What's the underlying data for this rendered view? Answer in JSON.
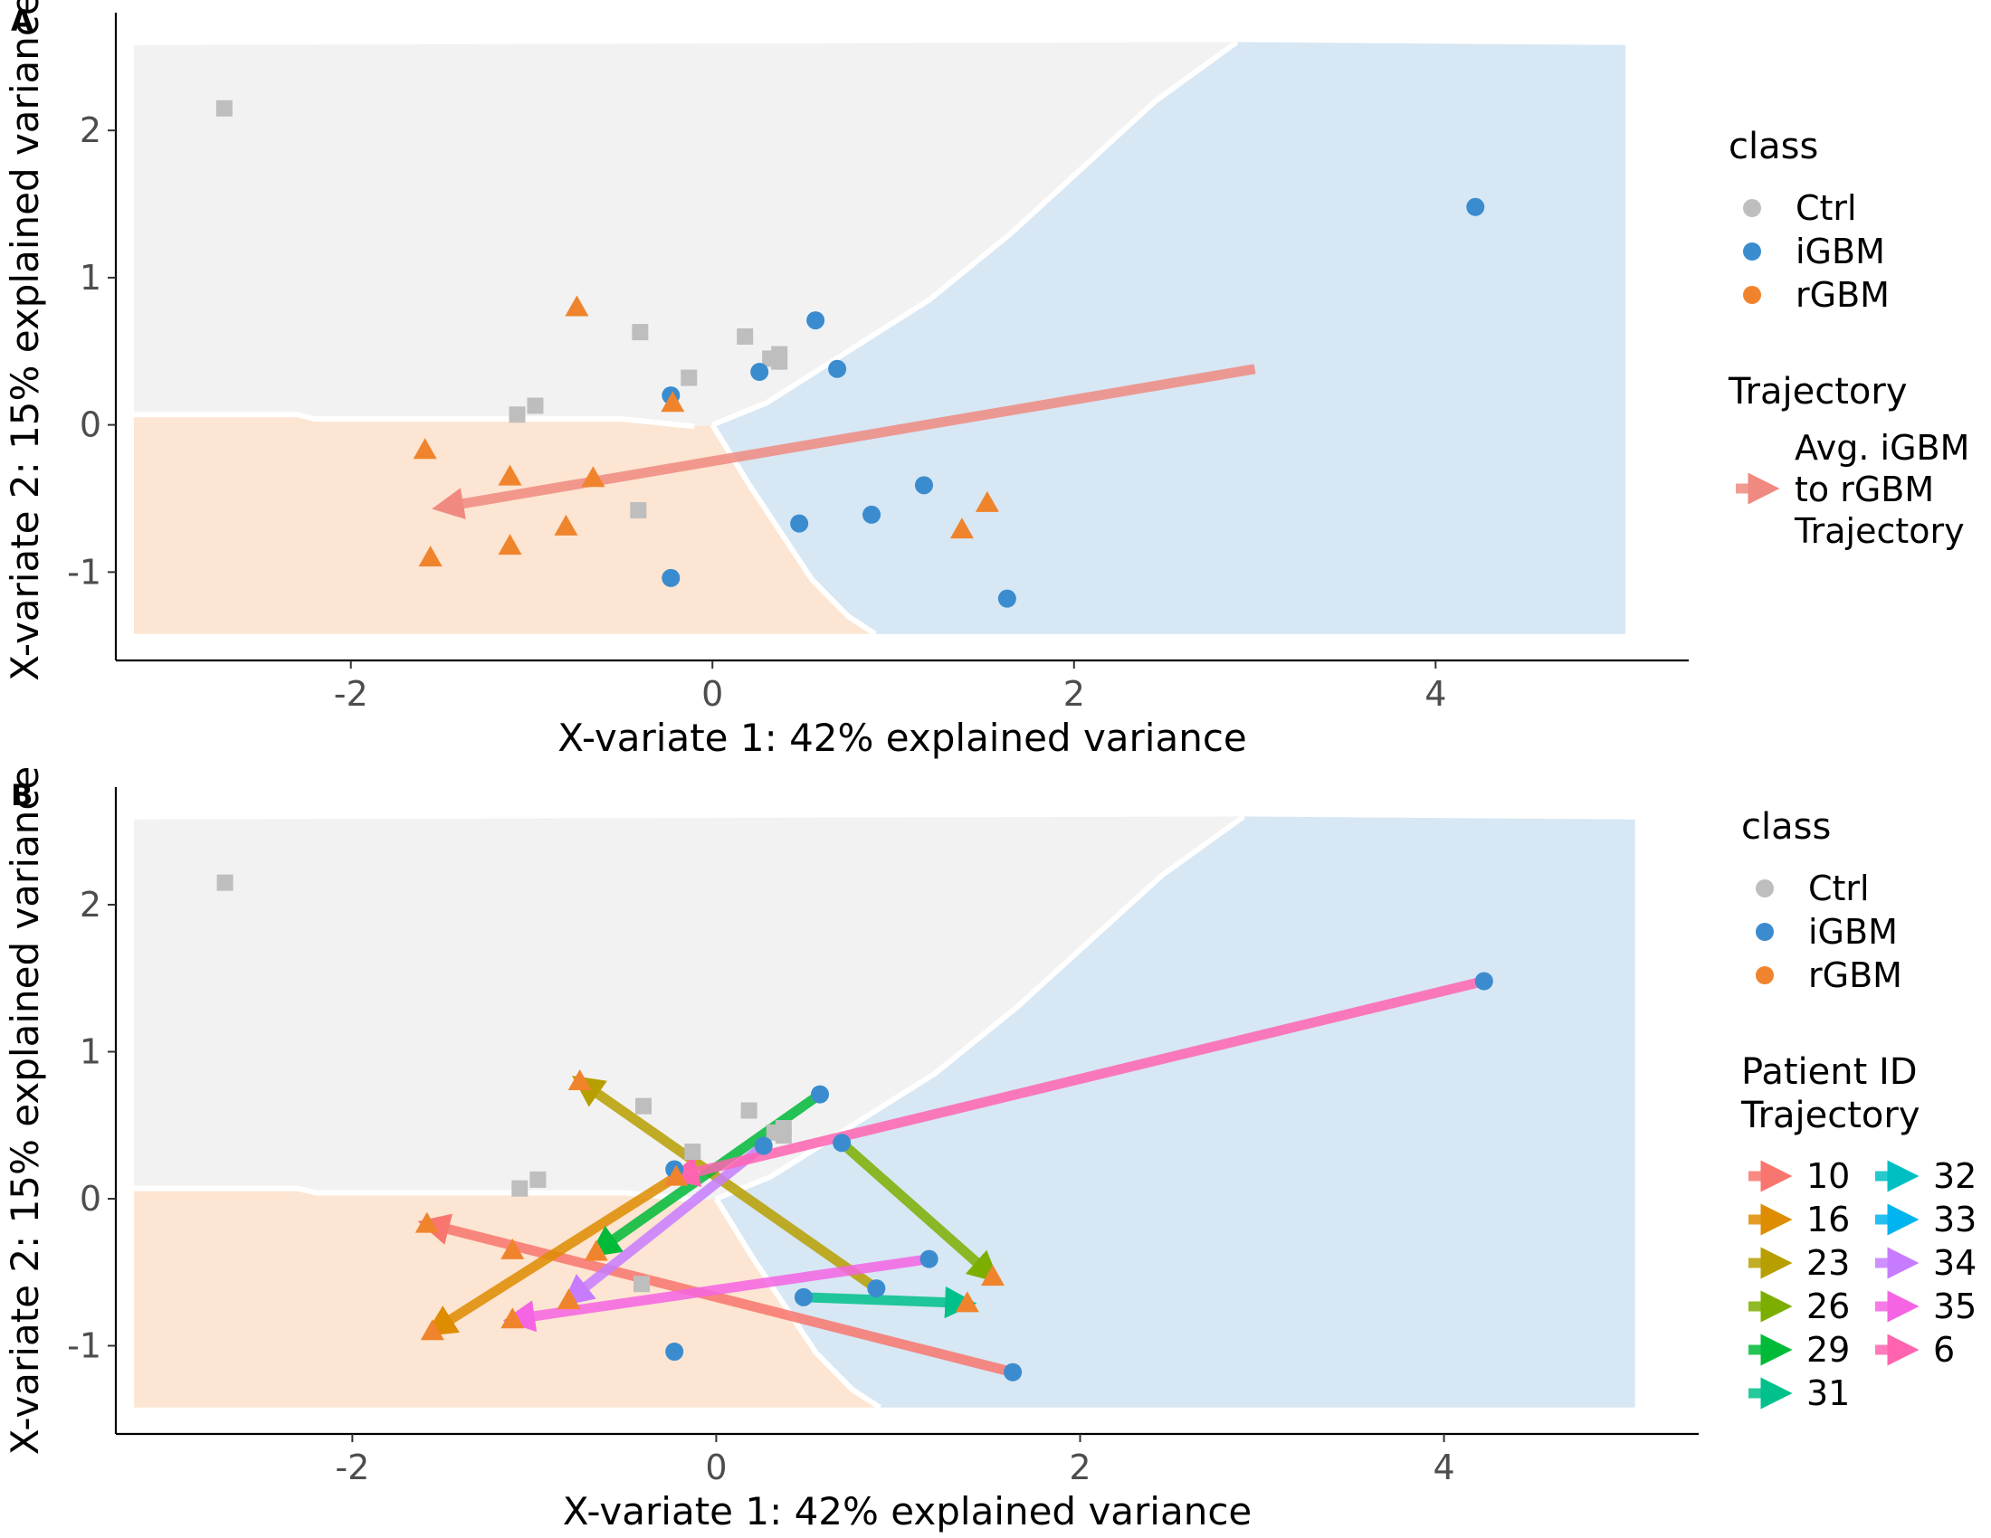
{
  "colors": {
    "Ctrl": "#bebebe",
    "iGBM": "#3a8ccf",
    "rGBM": "#f0842c",
    "region_Ctrl": "#f2f2f2",
    "region_iGBM": "#d7e7f4",
    "region_rGBM": "#fce5d2",
    "avg_trajectory": "#f08a80"
  },
  "chart_data": [
    {
      "type": "scatter",
      "panel_label": "A",
      "xlabel": "X-variate 1: 42% explained variance",
      "ylabel": "X-variate 2: 15% explained variance",
      "xlim": [
        -3.3,
        5.4
      ],
      "ylim": [
        -1.6,
        2.8
      ],
      "xticks": [
        -2,
        0,
        2,
        4
      ],
      "yticks": [
        -1,
        0,
        1,
        2
      ],
      "legend": {
        "class_title": "class",
        "classes": [
          "Ctrl",
          "iGBM",
          "rGBM"
        ],
        "trajectory_title": "Trajectory",
        "trajectory_label_lines": [
          "Avg. iGBM",
          "to rGBM",
          "Trajectory"
        ]
      },
      "points": {
        "Ctrl": [
          [
            -2.7,
            2.15
          ],
          [
            -0.4,
            0.63
          ],
          [
            0.18,
            0.6
          ],
          [
            -0.13,
            0.32
          ],
          [
            0.32,
            0.45
          ],
          [
            0.37,
            0.48
          ],
          [
            0.37,
            0.43
          ],
          [
            -1.08,
            0.07
          ],
          [
            -0.98,
            0.13
          ],
          [
            -0.41,
            -0.58
          ]
        ],
        "iGBM": [
          [
            4.22,
            1.48
          ],
          [
            0.57,
            0.71
          ],
          [
            0.69,
            0.38
          ],
          [
            0.26,
            0.36
          ],
          [
            -0.23,
            0.2
          ],
          [
            1.17,
            -0.41
          ],
          [
            0.88,
            -0.61
          ],
          [
            0.48,
            -0.67
          ],
          [
            -0.23,
            -1.04
          ],
          [
            1.63,
            -1.18
          ]
        ],
        "rGBM": [
          [
            -0.75,
            0.8
          ],
          [
            -0.22,
            0.15
          ],
          [
            -1.59,
            -0.17
          ],
          [
            -1.12,
            -0.35
          ],
          [
            -0.66,
            -0.36
          ],
          [
            -1.56,
            -0.9
          ],
          [
            -1.12,
            -0.82
          ],
          [
            -0.81,
            -0.69
          ],
          [
            1.52,
            -0.53
          ],
          [
            1.38,
            -0.71
          ]
        ]
      },
      "trajectories": [
        {
          "id": "avg",
          "from": [
            3.0,
            0.38
          ],
          "to": [
            -1.5,
            -0.56
          ]
        }
      ]
    },
    {
      "type": "scatter",
      "panel_label": "B",
      "xlabel": "X-variate 1: 42% explained variance",
      "ylabel": "X-variate 2: 15% explained variance",
      "xlim": [
        -3.3,
        5.4
      ],
      "ylim": [
        -1.6,
        2.8
      ],
      "xticks": [
        -2,
        0,
        2,
        4
      ],
      "yticks": [
        -1,
        0,
        1,
        2
      ],
      "legend": {
        "class_title": "class",
        "classes": [
          "Ctrl",
          "iGBM",
          "rGBM"
        ],
        "trajectory_title_lines": [
          "Patient ID",
          "Trajectory"
        ],
        "patient_ids": [
          "10",
          "16",
          "23",
          "26",
          "29",
          "31",
          "32",
          "33",
          "34",
          "35",
          "6"
        ]
      },
      "points": {
        "Ctrl": [
          [
            -2.7,
            2.15
          ],
          [
            -0.4,
            0.63
          ],
          [
            0.18,
            0.6
          ],
          [
            -0.13,
            0.32
          ],
          [
            0.32,
            0.45
          ],
          [
            0.37,
            0.48
          ],
          [
            0.37,
            0.43
          ],
          [
            -1.08,
            0.07
          ],
          [
            -0.98,
            0.13
          ],
          [
            -0.41,
            -0.58
          ]
        ],
        "iGBM": [
          [
            4.22,
            1.48
          ],
          [
            0.57,
            0.71
          ],
          [
            0.69,
            0.38
          ],
          [
            0.26,
            0.36
          ],
          [
            -0.23,
            0.2
          ],
          [
            1.17,
            -0.41
          ],
          [
            0.88,
            -0.61
          ],
          [
            0.48,
            -0.67
          ],
          [
            -0.23,
            -1.04
          ],
          [
            1.63,
            -1.18
          ]
        ],
        "rGBM": [
          [
            -0.75,
            0.8
          ],
          [
            -0.22,
            0.15
          ],
          [
            -1.59,
            -0.17
          ],
          [
            -1.12,
            -0.35
          ],
          [
            -0.66,
            -0.36
          ],
          [
            -1.56,
            -0.9
          ],
          [
            -1.12,
            -0.82
          ],
          [
            -0.81,
            -0.69
          ],
          [
            1.52,
            -0.53
          ],
          [
            1.38,
            -0.71
          ]
        ]
      },
      "trajectories": [
        {
          "id": "10",
          "color": "#f8766d",
          "from": [
            1.63,
            -1.18
          ],
          "to": [
            -1.59,
            -0.17
          ]
        },
        {
          "id": "16",
          "color": "#de8c00",
          "from": [
            -0.22,
            0.15
          ],
          "to": [
            -1.56,
            -0.9
          ]
        },
        {
          "id": "23",
          "color": "#b79f00",
          "from": [
            0.88,
            -0.61
          ],
          "to": [
            -0.75,
            0.8
          ]
        },
        {
          "id": "26",
          "color": "#7cae00",
          "from": [
            0.69,
            0.38
          ],
          "to": [
            1.52,
            -0.53
          ]
        },
        {
          "id": "29",
          "color": "#00ba38",
          "from": [
            0.57,
            0.71
          ],
          "to": [
            -0.66,
            -0.36
          ]
        },
        {
          "id": "31",
          "color": "#00c08b",
          "from": [
            0.48,
            -0.67
          ],
          "to": [
            1.38,
            -0.71
          ]
        },
        {
          "id": "32",
          "color": "#00bfc4",
          "from": null,
          "to": null
        },
        {
          "id": "33",
          "color": "#00b4f0",
          "from": null,
          "to": null
        },
        {
          "id": "34",
          "color": "#c77cff",
          "from": [
            0.26,
            0.36
          ],
          "to": [
            -0.81,
            -0.69
          ]
        },
        {
          "id": "35",
          "color": "#f564e3",
          "from": [
            1.17,
            -0.41
          ],
          "to": [
            -1.12,
            -0.82
          ]
        },
        {
          "id": "6",
          "color": "#ff64b0",
          "from": [
            4.22,
            1.48
          ],
          "to": [
            -0.22,
            0.15
          ]
        }
      ]
    }
  ]
}
